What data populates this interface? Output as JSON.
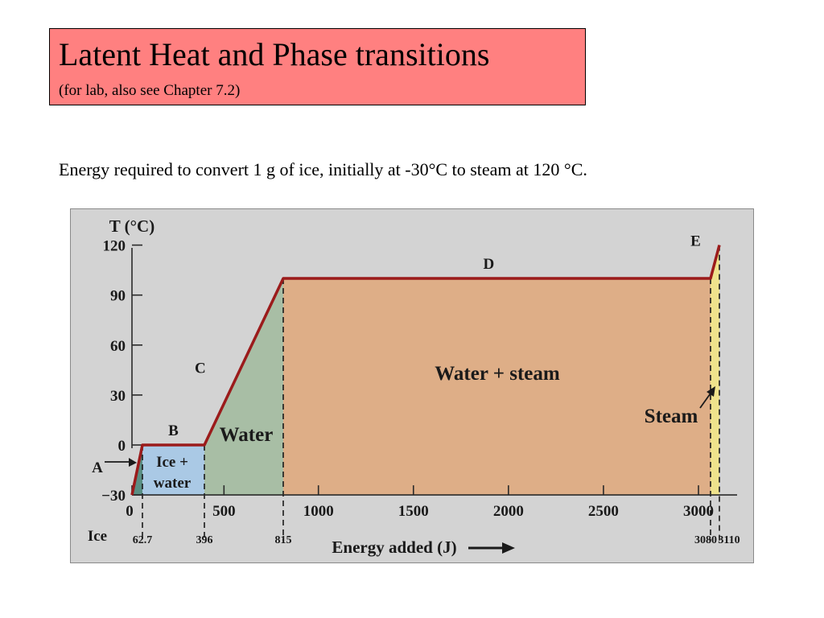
{
  "slide": {
    "title": "Latent Heat and Phase transitions",
    "subtitle": "(for lab, also see Chapter 7.2)",
    "caption": "Energy required to convert 1 g of ice, initially at -30°C to steam at 120 °C."
  },
  "chart_data": {
    "type": "line",
    "ylabel": "T (°C)",
    "xlabel": "Energy added (J)",
    "ylim": [
      -30,
      120
    ],
    "xlim": [
      0,
      3110
    ],
    "y_ticks": [
      -30,
      0,
      30,
      60,
      90,
      120
    ],
    "x_ticks": [
      0,
      500,
      1000,
      1500,
      2000,
      2500,
      3000
    ],
    "x_markers": [
      "62.7",
      "396",
      "815",
      "3080",
      "3110"
    ],
    "grid": false,
    "series": [
      {
        "points": [
          {
            "x": 0,
            "y": -30
          },
          {
            "x": 62.7,
            "y": 0
          },
          {
            "x": 396,
            "y": 0
          },
          {
            "x": 815,
            "y": 100
          },
          {
            "x": 3080,
            "y": 100
          },
          {
            "x": 3110,
            "y": 120
          }
        ]
      }
    ],
    "segment_labels": [
      {
        "text": "A",
        "x": 31,
        "y": -15
      },
      {
        "text": "B",
        "x": 229,
        "y": 0
      },
      {
        "text": "C",
        "x": 605,
        "y": 50
      },
      {
        "text": "D",
        "x": 1947,
        "y": 100
      },
      {
        "text": "E",
        "x": 3095,
        "y": 110
      }
    ],
    "regions": [
      {
        "label": "",
        "x0": 0,
        "x1": 62.7,
        "color": "#5a8f84"
      },
      {
        "label": "Ice +\nwater",
        "x0": 62.7,
        "x1": 396,
        "color": "#aac9e5"
      },
      {
        "label": "Water",
        "x0": 396,
        "x1": 815,
        "color": "#a8bea5"
      },
      {
        "label": "Water + steam",
        "x0": 815,
        "x1": 3080,
        "color": "#deae87"
      },
      {
        "label": "Steam",
        "x0": 3080,
        "x1": 3110,
        "color": "#efe38c"
      }
    ],
    "annotations": [
      {
        "text": "Ice",
        "x": 0,
        "y": -30
      },
      {
        "text": "A",
        "x": 0,
        "y": -15
      }
    ],
    "colors": {
      "line": "#9b1b1b",
      "axis": "#2a2a2a",
      "background": "#d3d3d3"
    }
  }
}
